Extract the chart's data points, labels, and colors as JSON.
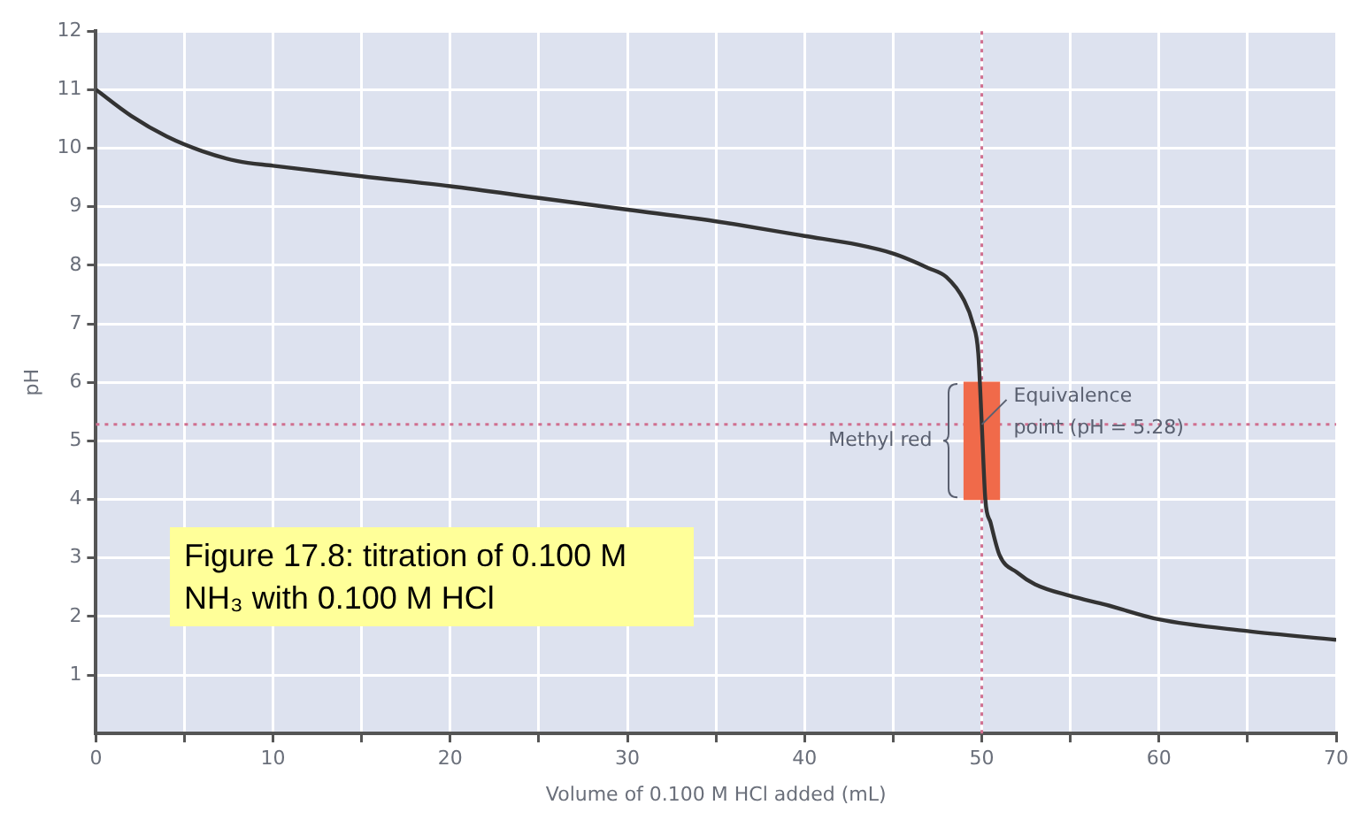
{
  "chart_data": {
    "type": "line",
    "xlabel": "Volume of 0.100 M HCl added (mL)",
    "ylabel": "pH",
    "series": [
      {
        "color": "#333333",
        "x": [
          0,
          2,
          4,
          6,
          8,
          10,
          15,
          20,
          25,
          30,
          35,
          40,
          43,
          45,
          47,
          48,
          49,
          49.5,
          49.8,
          50,
          50.2,
          50.5,
          51,
          52,
          53,
          55,
          57,
          60,
          65,
          70
        ],
        "values": [
          11.0,
          10.55,
          10.2,
          9.95,
          9.78,
          9.7,
          9.52,
          9.35,
          9.15,
          8.95,
          8.75,
          8.5,
          8.35,
          8.2,
          7.95,
          7.8,
          7.4,
          7.0,
          6.5,
          5.28,
          4.0,
          3.6,
          3.05,
          2.75,
          2.55,
          2.35,
          2.2,
          1.95,
          1.75,
          1.6
        ]
      },
      {
        "type": "bar",
        "name": "Methyl red",
        "color": "#f06a4a",
        "x": [
          50
        ],
        "base": [
          4
        ],
        "values": [
          2
        ]
      }
    ],
    "xlim": [
      0,
      70
    ],
    "xticks": [
      0,
      {
        "value": 5,
        "label": null
      },
      10,
      {
        "value": 15,
        "label": null
      },
      20,
      {
        "value": 25,
        "label": null
      },
      30,
      {
        "value": 35,
        "label": null
      },
      40,
      {
        "value": 45,
        "label": null
      },
      50,
      {
        "value": 55,
        "label": null
      },
      60,
      {
        "value": 65,
        "label": null
      },
      70
    ],
    "ylim": [
      0,
      12
    ],
    "yticks": [
      1,
      2,
      3,
      4,
      5,
      6,
      7,
      8,
      9,
      10,
      11,
      12
    ],
    "grid": true,
    "legend": false,
    "marker": "none",
    "line_style": "solid",
    "ref_lines": [
      {
        "axis": "x",
        "value": 50,
        "color": "#d07090",
        "line_style": "dotted"
      },
      {
        "axis": "y",
        "value": 5.28,
        "color": "#d07090",
        "line_style": "dotted"
      }
    ],
    "annotations": [
      {
        "text": "Equivalence point (pH = 5.28)",
        "x": 50,
        "y": 5.28
      },
      "Figure 17.8: titration of 0.100 M NH₃ with 0.100 M HCl"
    ]
  }
}
